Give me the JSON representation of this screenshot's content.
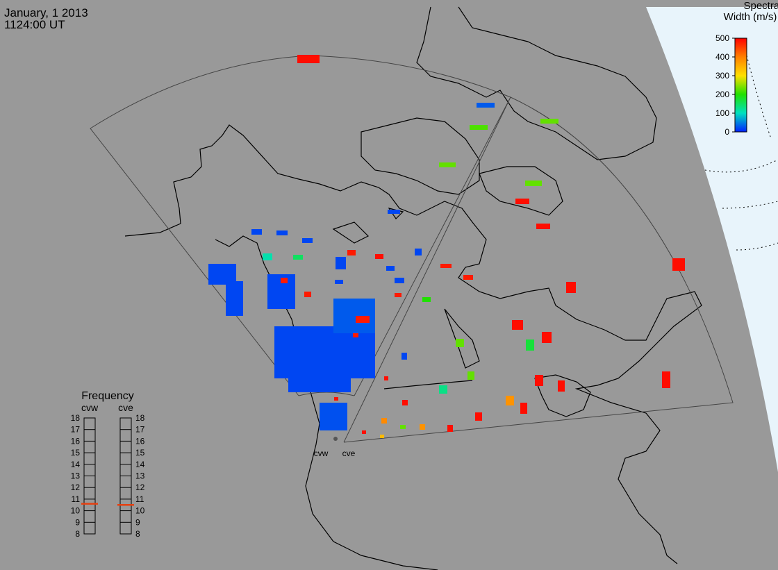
{
  "header": {
    "date": "January, 1 2013",
    "time": "1124:00 UT"
  },
  "colorbar": {
    "title": [
      "Spectral",
      "Width (m/s)"
    ],
    "lim": [
      0,
      500
    ],
    "ticks": [
      0,
      100,
      200,
      300,
      400,
      500
    ]
  },
  "frequency": {
    "title": "Frequency",
    "radars": [
      {
        "name": "cvw",
        "value": 10.6
      },
      {
        "name": "cve",
        "value": 10.5
      }
    ],
    "lim": [
      8,
      18
    ],
    "ticks": [
      8,
      9,
      10,
      11,
      12,
      13,
      14,
      15,
      16,
      17,
      18
    ]
  },
  "radar_labels": [
    "cvw",
    "cve"
  ],
  "echoes": {
    "spectral_width": [
      20,
      20,
      30,
      20,
      20,
      20,
      25,
      20,
      20,
      20,
      110,
      150,
      20,
      480,
      490,
      20,
      20,
      20,
      20,
      480,
      480,
      480,
      200,
      480,
      480,
      20,
      30,
      220,
      230,
      230,
      230,
      490,
      490,
      490,
      490,
      490,
      490,
      170,
      230,
      230,
      130,
      490,
      490,
      490,
      380,
      490,
      490,
      490,
      380,
      230,
      490,
      390,
      340,
      490,
      490,
      20,
      490,
      490,
      480,
      480
    ]
  }
}
